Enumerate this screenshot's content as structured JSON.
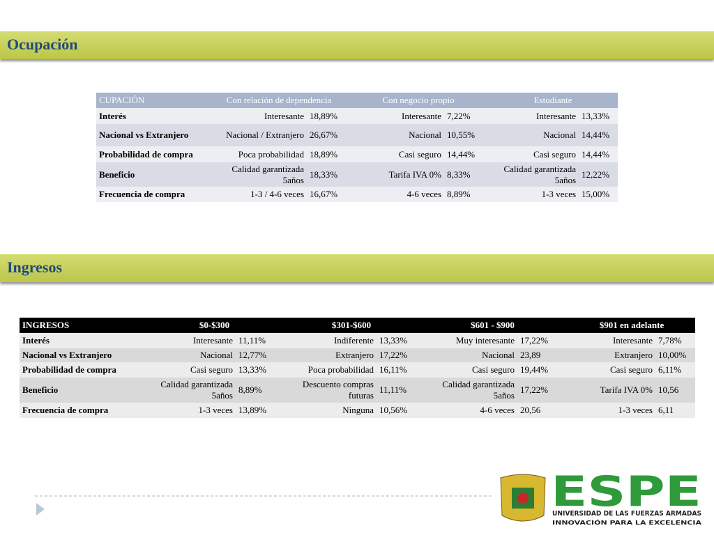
{
  "sections": [
    {
      "title": "Ocupación",
      "table": {
        "header": [
          "CUPACIÓN",
          "Con relación de dependencia",
          "Con negocio propio",
          "Estudiante"
        ],
        "rows": [
          [
            "Interés",
            "Interesante",
            "18,89%",
            "Interesante",
            "7,22%",
            "Interesante",
            "13,33%"
          ],
          [
            "Nacional vs Extranjero",
            "Nacional / Extranjero",
            "26,67%",
            "Nacional",
            "10,55%",
            "Nacional",
            "14,44%"
          ],
          [
            "Probabilidad de compra",
            "Poca probabilidad",
            "18,89%",
            "Casi seguro",
            "14,44%",
            "Casi seguro",
            "14,44%"
          ],
          [
            "Beneficio",
            "Calidad garantizada 5años",
            "18,33%",
            "Tarifa IVA 0%",
            "8,33%",
            "Calidad garantizada 5años",
            "12,22%"
          ],
          [
            "Frecuencia de compra",
            "1-3 / 4-6 veces",
            "16,67%",
            "4-6 veces",
            "8,89%",
            "1-3 veces",
            "15,00%"
          ]
        ]
      }
    },
    {
      "title": "Ingresos",
      "table": {
        "header": [
          "INGRESOS",
          "$0-$300",
          "$301-$600",
          "$601 - $900",
          "$901 en adelante"
        ],
        "rows": [
          [
            "Interés",
            "Interesante",
            "11,11%",
            "Indiferente",
            "13,33%",
            "Muy interesante",
            "17,22%",
            "Interesante",
            "7,78%"
          ],
          [
            "Nacional vs Extranjero",
            "Nacional",
            "12,77%",
            "Extranjero",
            "17,22%",
            "Nacional",
            "23,89",
            "Extranjero",
            "10,00%"
          ],
          [
            "Probabilidad de compra",
            "Casi seguro",
            "13,33%",
            "Poca probabilidad",
            "16,11%",
            "Casi seguro",
            "19,44%",
            "Casi seguro",
            "6,11%"
          ],
          [
            "Beneficio",
            "Calidad garantizada 5años",
            "8,89%",
            "Descuento compras futuras",
            "11,11%",
            "Calidad garantizada 5años",
            "17,22%",
            "Tarifa IVA 0%",
            "10,56"
          ],
          [
            "Frecuencia de compra",
            "1-3 veces",
            "13,89%",
            "Ninguna",
            "10,56%",
            "4-6 veces",
            "20,56",
            "1-3 veces",
            "6,11"
          ]
        ]
      }
    }
  ],
  "logo": {
    "name": "ESPE",
    "subtitle": "UNIVERSIDAD DE LAS FUERZAS ARMADAS",
    "motto": "INNOVACIÓN PARA LA EXCELENCIA"
  }
}
